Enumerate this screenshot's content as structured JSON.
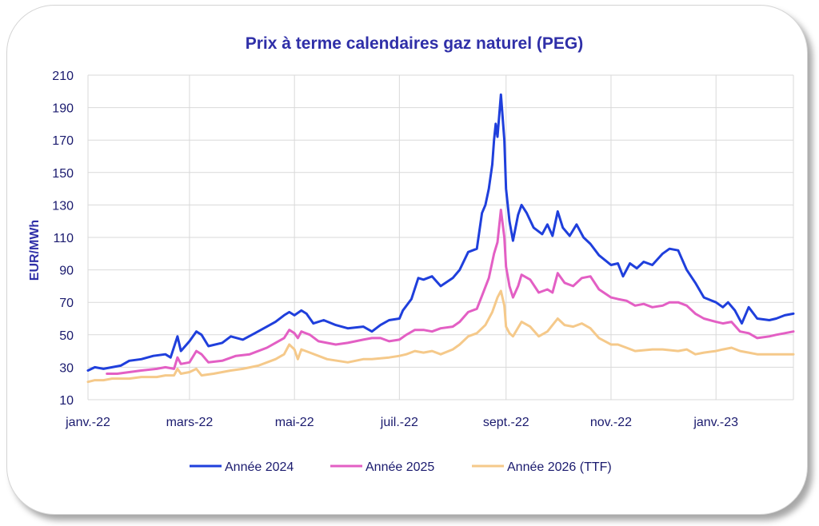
{
  "chart_data": {
    "type": "line",
    "title": "Prix à terme calendaires gaz naturel (PEG)",
    "xlabel": "",
    "ylabel": "EUR/MWh",
    "ylim": [
      10,
      210
    ],
    "yticks": [
      10,
      30,
      50,
      70,
      90,
      110,
      130,
      150,
      170,
      190,
      210
    ],
    "xlim": [
      "2022-01-01",
      "2023-02-15"
    ],
    "xticks": [
      {
        "date": "2022-01-01",
        "label": "janv.-22"
      },
      {
        "date": "2022-03-01",
        "label": "mars-22"
      },
      {
        "date": "2022-05-01",
        "label": "mai-22"
      },
      {
        "date": "2022-07-01",
        "label": "juil.-22"
      },
      {
        "date": "2022-09-01",
        "label": "sept.-22"
      },
      {
        "date": "2022-11-01",
        "label": "nov.-22"
      },
      {
        "date": "2023-01-01",
        "label": "janv.-23"
      }
    ],
    "grid": true,
    "legend_position": "bottom",
    "series": [
      {
        "name": "Année 2024",
        "color": "#1f3fdc",
        "points": [
          [
            "2022-01-01",
            28
          ],
          [
            "2022-01-05",
            30
          ],
          [
            "2022-01-10",
            29
          ],
          [
            "2022-01-15",
            30
          ],
          [
            "2022-01-20",
            31
          ],
          [
            "2022-01-25",
            34
          ],
          [
            "2022-02-01",
            35
          ],
          [
            "2022-02-08",
            37
          ],
          [
            "2022-02-15",
            38
          ],
          [
            "2022-02-18",
            36
          ],
          [
            "2022-02-22",
            49
          ],
          [
            "2022-02-24",
            40
          ],
          [
            "2022-03-01",
            46
          ],
          [
            "2022-03-05",
            52
          ],
          [
            "2022-03-08",
            50
          ],
          [
            "2022-03-12",
            43
          ],
          [
            "2022-03-20",
            45
          ],
          [
            "2022-03-25",
            49
          ],
          [
            "2022-04-01",
            47
          ],
          [
            "2022-04-08",
            51
          ],
          [
            "2022-04-15",
            55
          ],
          [
            "2022-04-20",
            58
          ],
          [
            "2022-04-25",
            62
          ],
          [
            "2022-04-28",
            64
          ],
          [
            "2022-05-01",
            62
          ],
          [
            "2022-05-05",
            65
          ],
          [
            "2022-05-08",
            63
          ],
          [
            "2022-05-12",
            57
          ],
          [
            "2022-05-18",
            59
          ],
          [
            "2022-05-25",
            56
          ],
          [
            "2022-06-01",
            54
          ],
          [
            "2022-06-10",
            55
          ],
          [
            "2022-06-15",
            52
          ],
          [
            "2022-06-20",
            56
          ],
          [
            "2022-06-25",
            59
          ],
          [
            "2022-07-01",
            60
          ],
          [
            "2022-07-03",
            65
          ],
          [
            "2022-07-08",
            72
          ],
          [
            "2022-07-12",
            85
          ],
          [
            "2022-07-15",
            84
          ],
          [
            "2022-07-20",
            86
          ],
          [
            "2022-07-25",
            80
          ],
          [
            "2022-08-01",
            85
          ],
          [
            "2022-08-05",
            90
          ],
          [
            "2022-08-10",
            101
          ],
          [
            "2022-08-15",
            103
          ],
          [
            "2022-08-18",
            125
          ],
          [
            "2022-08-20",
            130
          ],
          [
            "2022-08-22",
            140
          ],
          [
            "2022-08-24",
            155
          ],
          [
            "2022-08-25",
            170
          ],
          [
            "2022-08-26",
            180
          ],
          [
            "2022-08-27",
            172
          ],
          [
            "2022-08-29",
            198
          ],
          [
            "2022-08-31",
            170
          ],
          [
            "2022-09-01",
            140
          ],
          [
            "2022-09-03",
            120
          ],
          [
            "2022-09-05",
            108
          ],
          [
            "2022-09-08",
            124
          ],
          [
            "2022-09-10",
            130
          ],
          [
            "2022-09-13",
            125
          ],
          [
            "2022-09-17",
            116
          ],
          [
            "2022-09-22",
            112
          ],
          [
            "2022-09-25",
            118
          ],
          [
            "2022-09-28",
            111
          ],
          [
            "2022-10-01",
            126
          ],
          [
            "2022-10-04",
            116
          ],
          [
            "2022-10-08",
            111
          ],
          [
            "2022-10-12",
            118
          ],
          [
            "2022-10-16",
            110
          ],
          [
            "2022-10-20",
            106
          ],
          [
            "2022-10-25",
            99
          ],
          [
            "2022-11-01",
            93
          ],
          [
            "2022-11-05",
            94
          ],
          [
            "2022-11-08",
            86
          ],
          [
            "2022-11-12",
            94
          ],
          [
            "2022-11-16",
            91
          ],
          [
            "2022-11-20",
            95
          ],
          [
            "2022-11-25",
            93
          ],
          [
            "2022-12-01",
            100
          ],
          [
            "2022-12-05",
            103
          ],
          [
            "2022-12-10",
            102
          ],
          [
            "2022-12-15",
            90
          ],
          [
            "2022-12-20",
            82
          ],
          [
            "2022-12-25",
            73
          ],
          [
            "2023-01-01",
            70
          ],
          [
            "2023-01-05",
            67
          ],
          [
            "2023-01-08",
            70
          ],
          [
            "2023-01-12",
            65
          ],
          [
            "2023-01-16",
            57
          ],
          [
            "2023-01-20",
            67
          ],
          [
            "2023-01-25",
            60
          ],
          [
            "2023-02-01",
            59
          ],
          [
            "2023-02-05",
            60
          ],
          [
            "2023-02-10",
            62
          ],
          [
            "2023-02-15",
            63
          ]
        ]
      },
      {
        "name": "Année 2025",
        "color": "#e35fc4",
        "points": [
          [
            "2022-01-12",
            26
          ],
          [
            "2022-01-18",
            26
          ],
          [
            "2022-01-25",
            27
          ],
          [
            "2022-02-01",
            28
          ],
          [
            "2022-02-10",
            29
          ],
          [
            "2022-02-15",
            30
          ],
          [
            "2022-02-20",
            29
          ],
          [
            "2022-02-22",
            36
          ],
          [
            "2022-02-24",
            32
          ],
          [
            "2022-03-01",
            33
          ],
          [
            "2022-03-05",
            40
          ],
          [
            "2022-03-08",
            38
          ],
          [
            "2022-03-12",
            33
          ],
          [
            "2022-03-20",
            34
          ],
          [
            "2022-03-28",
            37
          ],
          [
            "2022-04-05",
            38
          ],
          [
            "2022-04-15",
            42
          ],
          [
            "2022-04-20",
            45
          ],
          [
            "2022-04-25",
            48
          ],
          [
            "2022-04-28",
            53
          ],
          [
            "2022-05-01",
            51
          ],
          [
            "2022-05-03",
            48
          ],
          [
            "2022-05-05",
            52
          ],
          [
            "2022-05-10",
            50
          ],
          [
            "2022-05-15",
            46
          ],
          [
            "2022-05-25",
            44
          ],
          [
            "2022-06-01",
            45
          ],
          [
            "2022-06-10",
            47
          ],
          [
            "2022-06-15",
            48
          ],
          [
            "2022-06-20",
            48
          ],
          [
            "2022-06-25",
            46
          ],
          [
            "2022-07-01",
            47
          ],
          [
            "2022-07-05",
            50
          ],
          [
            "2022-07-10",
            53
          ],
          [
            "2022-07-15",
            53
          ],
          [
            "2022-07-20",
            52
          ],
          [
            "2022-07-25",
            54
          ],
          [
            "2022-08-01",
            55
          ],
          [
            "2022-08-05",
            58
          ],
          [
            "2022-08-10",
            64
          ],
          [
            "2022-08-15",
            66
          ],
          [
            "2022-08-18",
            74
          ],
          [
            "2022-08-22",
            85
          ],
          [
            "2022-08-25",
            100
          ],
          [
            "2022-08-27",
            107
          ],
          [
            "2022-08-29",
            127
          ],
          [
            "2022-08-31",
            110
          ],
          [
            "2022-09-01",
            92
          ],
          [
            "2022-09-03",
            80
          ],
          [
            "2022-09-05",
            73
          ],
          [
            "2022-09-08",
            80
          ],
          [
            "2022-09-10",
            87
          ],
          [
            "2022-09-15",
            84
          ],
          [
            "2022-09-20",
            76
          ],
          [
            "2022-09-25",
            78
          ],
          [
            "2022-09-28",
            76
          ],
          [
            "2022-10-01",
            88
          ],
          [
            "2022-10-05",
            82
          ],
          [
            "2022-10-10",
            80
          ],
          [
            "2022-10-15",
            85
          ],
          [
            "2022-10-20",
            86
          ],
          [
            "2022-10-25",
            78
          ],
          [
            "2022-11-01",
            73
          ],
          [
            "2022-11-05",
            72
          ],
          [
            "2022-11-10",
            71
          ],
          [
            "2022-11-15",
            68
          ],
          [
            "2022-11-20",
            69
          ],
          [
            "2022-11-25",
            67
          ],
          [
            "2022-12-01",
            68
          ],
          [
            "2022-12-05",
            70
          ],
          [
            "2022-12-10",
            70
          ],
          [
            "2022-12-15",
            68
          ],
          [
            "2022-12-20",
            63
          ],
          [
            "2022-12-25",
            60
          ],
          [
            "2023-01-01",
            58
          ],
          [
            "2023-01-05",
            57
          ],
          [
            "2023-01-10",
            58
          ],
          [
            "2023-01-15",
            52
          ],
          [
            "2023-01-20",
            51
          ],
          [
            "2023-01-25",
            48
          ],
          [
            "2023-02-01",
            49
          ],
          [
            "2023-02-05",
            50
          ],
          [
            "2023-02-10",
            51
          ],
          [
            "2023-02-15",
            52
          ]
        ]
      },
      {
        "name": "Année 2026 (TTF)",
        "color": "#f5c98a",
        "points": [
          [
            "2022-01-01",
            21
          ],
          [
            "2022-01-05",
            22
          ],
          [
            "2022-01-10",
            22
          ],
          [
            "2022-01-15",
            23
          ],
          [
            "2022-01-25",
            23
          ],
          [
            "2022-02-01",
            24
          ],
          [
            "2022-02-10",
            24
          ],
          [
            "2022-02-15",
            25
          ],
          [
            "2022-02-20",
            25
          ],
          [
            "2022-02-22",
            29
          ],
          [
            "2022-02-24",
            26
          ],
          [
            "2022-03-01",
            27
          ],
          [
            "2022-03-05",
            29
          ],
          [
            "2022-03-08",
            25
          ],
          [
            "2022-03-15",
            26
          ],
          [
            "2022-03-25",
            28
          ],
          [
            "2022-04-01",
            29
          ],
          [
            "2022-04-10",
            31
          ],
          [
            "2022-04-20",
            35
          ],
          [
            "2022-04-25",
            38
          ],
          [
            "2022-04-28",
            44
          ],
          [
            "2022-05-01",
            41
          ],
          [
            "2022-05-03",
            35
          ],
          [
            "2022-05-05",
            41
          ],
          [
            "2022-05-10",
            39
          ],
          [
            "2022-05-20",
            35
          ],
          [
            "2022-06-01",
            33
          ],
          [
            "2022-06-10",
            35
          ],
          [
            "2022-06-15",
            35
          ],
          [
            "2022-06-25",
            36
          ],
          [
            "2022-07-01",
            37
          ],
          [
            "2022-07-05",
            38
          ],
          [
            "2022-07-10",
            40
          ],
          [
            "2022-07-15",
            39
          ],
          [
            "2022-07-20",
            40
          ],
          [
            "2022-07-25",
            38
          ],
          [
            "2022-08-01",
            41
          ],
          [
            "2022-08-05",
            44
          ],
          [
            "2022-08-10",
            49
          ],
          [
            "2022-08-15",
            51
          ],
          [
            "2022-08-20",
            56
          ],
          [
            "2022-08-24",
            64
          ],
          [
            "2022-08-27",
            73
          ],
          [
            "2022-08-29",
            77
          ],
          [
            "2022-08-31",
            68
          ],
          [
            "2022-09-01",
            55
          ],
          [
            "2022-09-03",
            51
          ],
          [
            "2022-09-05",
            49
          ],
          [
            "2022-09-10",
            58
          ],
          [
            "2022-09-15",
            55
          ],
          [
            "2022-09-20",
            49
          ],
          [
            "2022-09-25",
            52
          ],
          [
            "2022-10-01",
            60
          ],
          [
            "2022-10-05",
            56
          ],
          [
            "2022-10-10",
            55
          ],
          [
            "2022-10-15",
            57
          ],
          [
            "2022-10-20",
            54
          ],
          [
            "2022-10-25",
            48
          ],
          [
            "2022-11-01",
            44
          ],
          [
            "2022-11-05",
            44
          ],
          [
            "2022-11-10",
            42
          ],
          [
            "2022-11-15",
            40
          ],
          [
            "2022-11-25",
            41
          ],
          [
            "2022-12-01",
            41
          ],
          [
            "2022-12-10",
            40
          ],
          [
            "2022-12-15",
            41
          ],
          [
            "2022-12-20",
            38
          ],
          [
            "2022-12-25",
            39
          ],
          [
            "2023-01-01",
            40
          ],
          [
            "2023-01-05",
            41
          ],
          [
            "2023-01-10",
            42
          ],
          [
            "2023-01-15",
            40
          ],
          [
            "2023-01-20",
            39
          ],
          [
            "2023-01-25",
            38
          ],
          [
            "2023-02-01",
            38
          ],
          [
            "2023-02-10",
            38
          ],
          [
            "2023-02-15",
            38
          ]
        ]
      }
    ]
  }
}
